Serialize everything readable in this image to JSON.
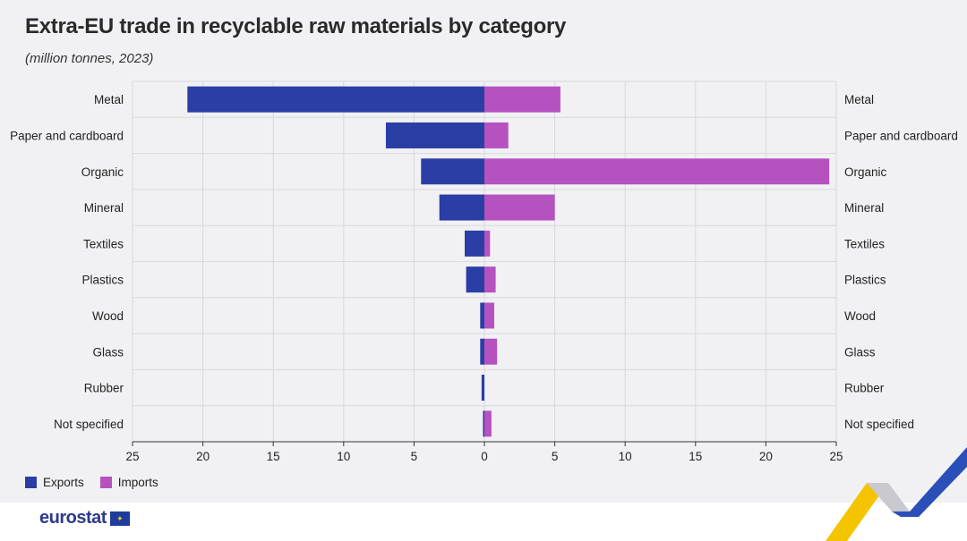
{
  "title": "Extra-EU trade in recyclable raw materials by category",
  "subtitle": "(million tonnes, 2023)",
  "legend": {
    "exports_label": "Exports",
    "imports_label": "Imports"
  },
  "logo": {
    "text": "eurostat"
  },
  "colors": {
    "exports": "#2b3ea5",
    "imports": "#b652c0",
    "grid": "#d8d8de",
    "axis": "#333333",
    "background": "#f1f1f4"
  },
  "chart_data": {
    "type": "bar",
    "orientation": "horizontal-diverging",
    "categories": [
      "Metal",
      "Paper and cardboard",
      "Organic",
      "Mineral",
      "Textiles",
      "Plastics",
      "Wood",
      "Glass",
      "Rubber",
      "Not specified"
    ],
    "series": [
      {
        "name": "Exports",
        "direction": "left",
        "values": [
          21.1,
          7.0,
          4.5,
          3.2,
          1.4,
          1.3,
          0.3,
          0.3,
          0.2,
          0.1
        ]
      },
      {
        "name": "Imports",
        "direction": "right",
        "values": [
          5.4,
          1.7,
          24.5,
          5.0,
          0.4,
          0.8,
          0.7,
          0.9,
          0.0,
          0.5
        ]
      }
    ],
    "xlim": [
      -25,
      25
    ],
    "xticks": [
      -25,
      -20,
      -15,
      -10,
      -5,
      0,
      5,
      10,
      15,
      20,
      25
    ],
    "xtick_labels": [
      "25",
      "20",
      "15",
      "10",
      "5",
      "0",
      "5",
      "10",
      "15",
      "20",
      "25"
    ],
    "grid": true,
    "category_labels_both_sides": true,
    "legend_position": "bottom-left"
  }
}
